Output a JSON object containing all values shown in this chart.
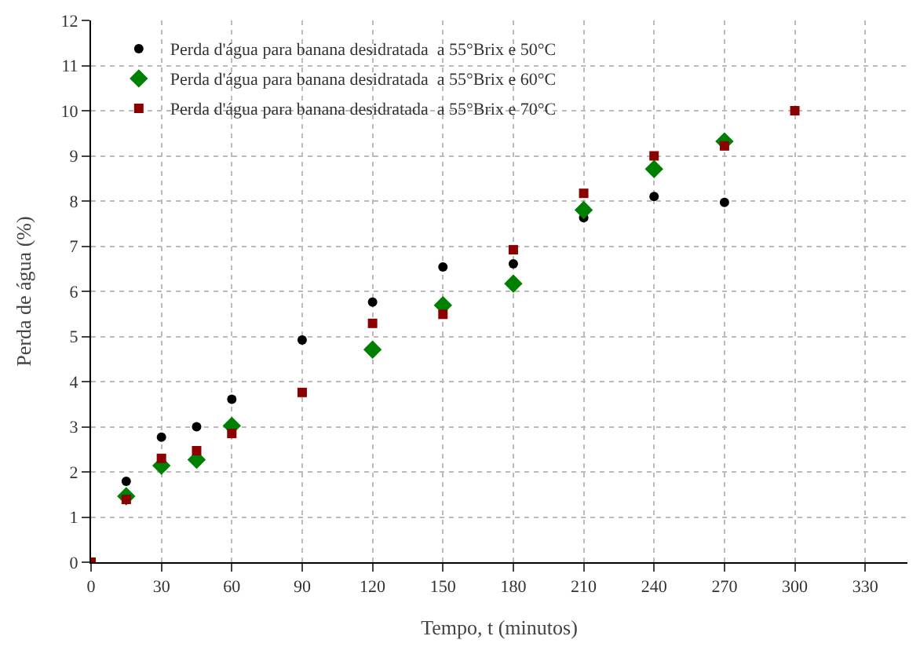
{
  "chart_data": {
    "type": "scatter",
    "xlabel": "Tempo, t (minutos)",
    "ylabel": "Perda de água (%)",
    "series": [
      {
        "name": "Perda d'água para banana desidratada  a 55°Brix e 50°C",
        "color": "#000000",
        "marker": "circle",
        "x": [
          15,
          30,
          45,
          60,
          90,
          120,
          150,
          180,
          210,
          240,
          270
        ],
        "values": [
          1.79,
          2.77,
          3.0,
          3.61,
          4.92,
          5.76,
          6.54,
          6.61,
          7.63,
          8.1,
          7.97
        ]
      },
      {
        "name": "Perda d'água para banana desidratada  a 55°Brix e 60°C",
        "color": "#008000",
        "marker": "diamond",
        "x": [
          15,
          30,
          45,
          60,
          90,
          120,
          150,
          180,
          210,
          240,
          270
        ],
        "values": [
          1.46,
          2.14,
          2.27,
          3.02,
          null,
          4.71,
          5.69,
          6.17,
          7.8,
          8.71,
          9.32
        ]
      },
      {
        "name": "Perda d'água para banana desidratada  a 55°Brix e 70°C",
        "color": "#8b0000",
        "marker": "square",
        "x": [
          0,
          15,
          30,
          45,
          60,
          90,
          120,
          150,
          180,
          210,
          240,
          270,
          300
        ],
        "values": [
          0,
          1.39,
          2.3,
          2.47,
          2.85,
          3.76,
          5.29,
          5.49,
          6.92,
          8.17,
          9.0,
          9.22,
          10.0
        ]
      }
    ],
    "xlim": [
      0,
      348
    ],
    "xticks": [
      0,
      30,
      60,
      90,
      120,
      150,
      180,
      210,
      240,
      270,
      300,
      330
    ],
    "ylim": [
      0,
      12
    ],
    "yticks": [
      0,
      1,
      2,
      3,
      4,
      5,
      6,
      7,
      8,
      9,
      10,
      11,
      12
    ],
    "grid": true,
    "legend": "top left"
  }
}
